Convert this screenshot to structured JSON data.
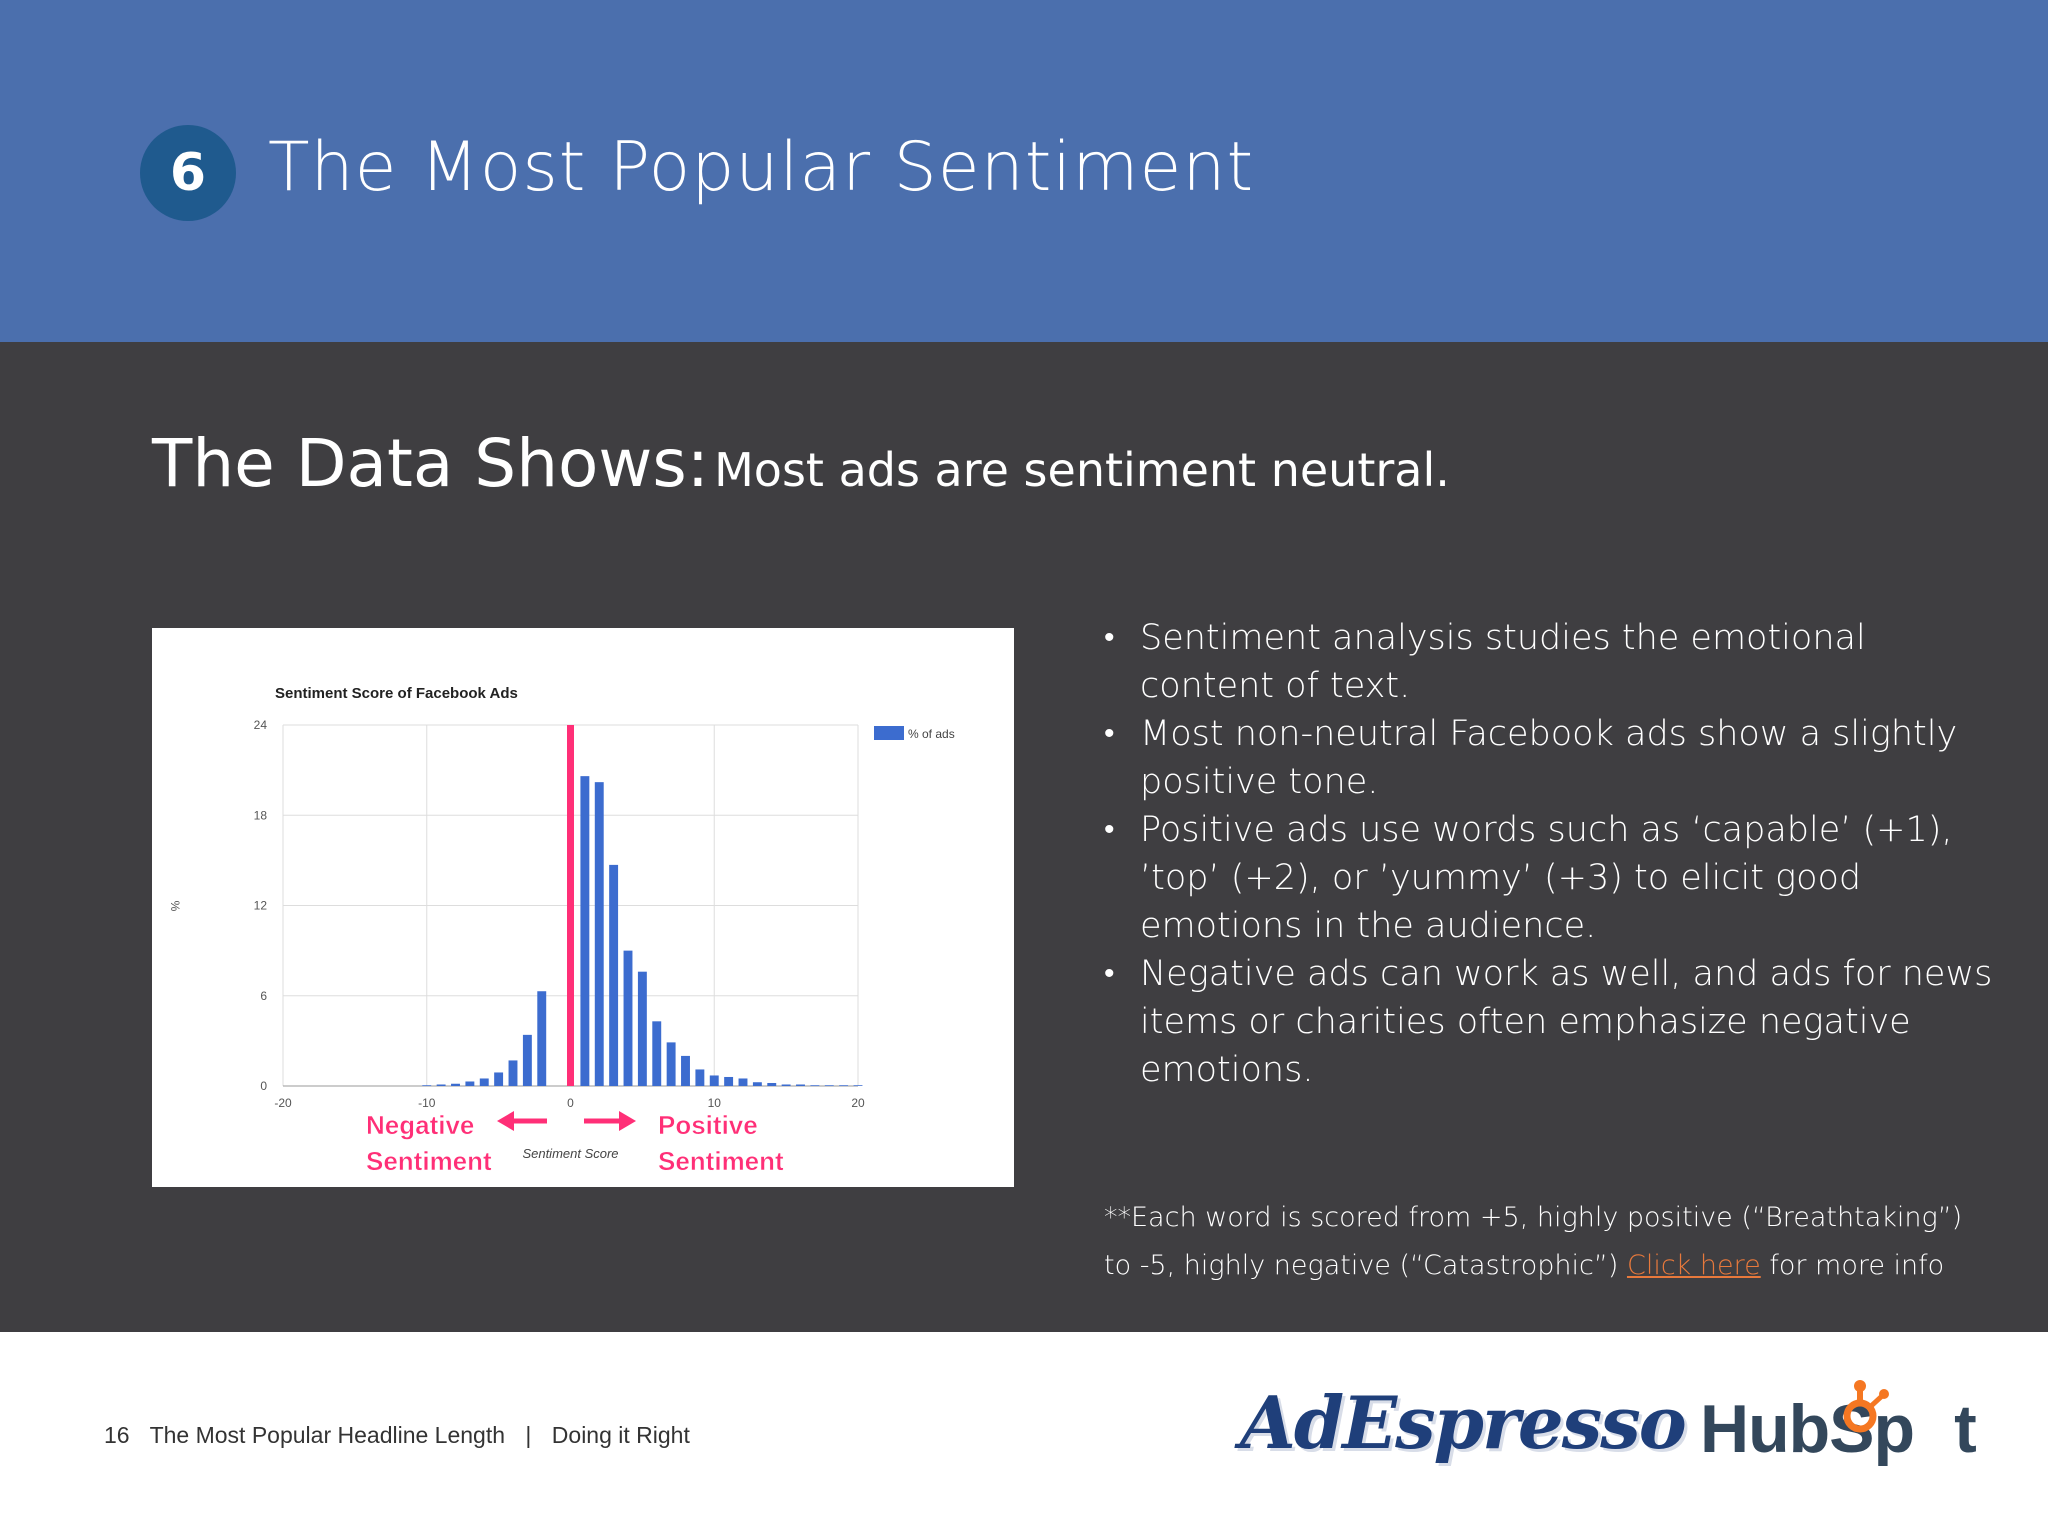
{
  "header": {
    "badge_number": "6",
    "title": "The Most Popular Sentiment",
    "background_color": "#4b6fad"
  },
  "main": {
    "headline_big": "The Data Shows:",
    "headline_small": "Most ads are sentiment neutral.",
    "bullets": [
      "Sentiment analysis studies the emotional content of text.",
      "Most non-neutral Facebook ads show a slightly positive tone.",
      "Positive ads use words such as ‘capable’ (+1), ’top’ (+2), or ’yummy’ (+3) to elicit good emotions in the audience.",
      "Negative ads can work as well, and ads for news items or charities often emphasize negative emotions."
    ],
    "footnote_text": "**Each word is scored from +5, highly positive (“Breathtaking”) to -5, highly negative (“Catastrophic”) ",
    "footnote_link": "Click here",
    "footnote_after": " for more info"
  },
  "chart_data": {
    "type": "bar",
    "title": "Sentiment Score of Facebook Ads",
    "xlabel": "Sentiment Score",
    "ylabel": "%",
    "xlim": [
      -20,
      20
    ],
    "ylim": [
      0,
      24
    ],
    "yticks": [
      "0",
      "6",
      "12",
      "18",
      "24"
    ],
    "xticks": [
      "-20",
      "-10",
      "0",
      "10",
      "20"
    ],
    "grid": true,
    "legend": "top-right",
    "series": [
      {
        "name": "% of ads",
        "color": "#3c6ccf",
        "x": [
          -20,
          -19,
          -18,
          -17,
          -16,
          -15,
          -14,
          -13,
          -12,
          -11,
          -10,
          -9,
          -8,
          -7,
          -6,
          -5,
          -4,
          -3,
          -2,
          -1,
          0,
          1,
          2,
          3,
          4,
          5,
          6,
          7,
          8,
          9,
          10,
          11,
          12,
          13,
          14,
          15,
          16,
          17,
          18,
          19,
          20
        ],
        "values": [
          0,
          0,
          0,
          0,
          0,
          0,
          0,
          0,
          0,
          0,
          0.05,
          0.1,
          0.15,
          0.3,
          0.5,
          0.9,
          1.7,
          3.4,
          6.3,
          0,
          24,
          20.6,
          20.2,
          14.7,
          9.0,
          7.6,
          4.3,
          2.9,
          2.0,
          1.1,
          0.7,
          0.6,
          0.5,
          0.25,
          0.2,
          0.1,
          0.1,
          0.05,
          0.05,
          0.05,
          0.05
        ]
      }
    ],
    "highlight": {
      "x": 0,
      "color": "#ff2f77"
    },
    "annotations": {
      "negative_line1": "Negative",
      "negative_line2": "Sentiment",
      "positive_line1": "Positive",
      "positive_line2": "Sentiment",
      "color": "#ff2f77"
    }
  },
  "footer": {
    "page_number": "16",
    "nav_left": "The Most Popular Headline Length",
    "separator": "|",
    "nav_right": "Doing it Right",
    "logo_left": "AdEspresso",
    "logo_right_a": "HubSp",
    "logo_right_b": "t"
  }
}
